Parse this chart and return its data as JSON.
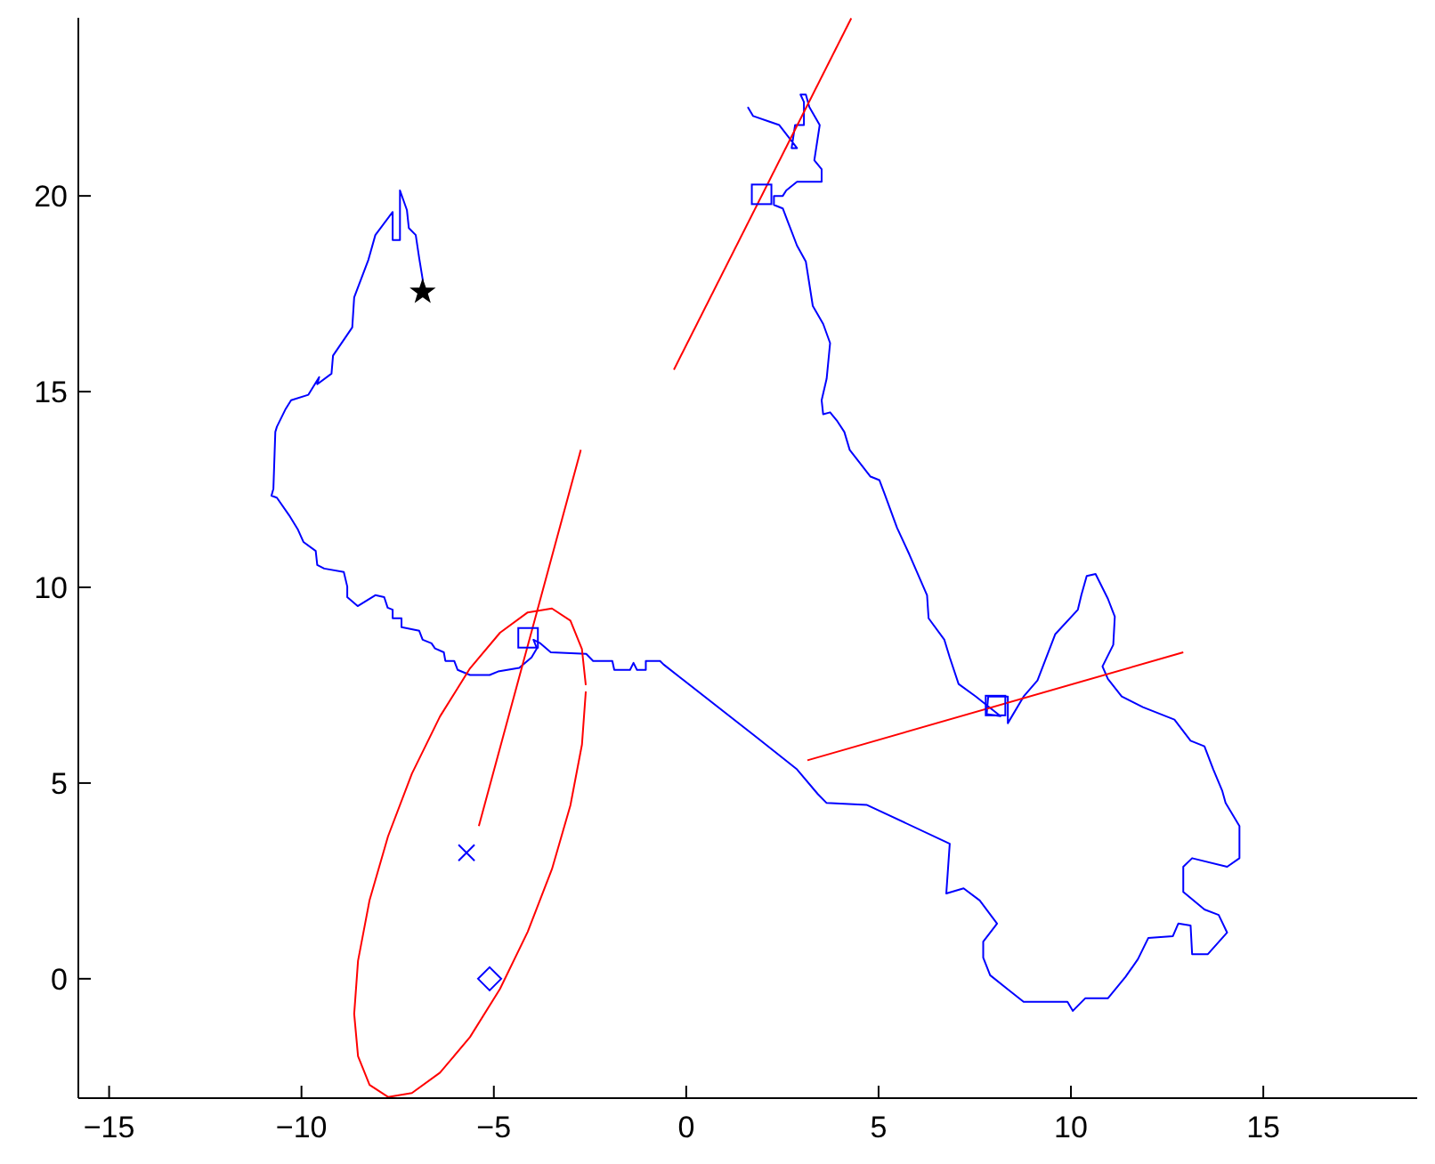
{
  "chart_data": {
    "type": "line",
    "xlim": [
      -15.8,
      19
    ],
    "ylim": [
      -3.05,
      24.55
    ],
    "xticks": [
      -15,
      -10,
      -5,
      0,
      5,
      10,
      15
    ],
    "yticks": [
      0,
      5,
      10,
      15,
      20
    ],
    "grid": false,
    "series": [
      {
        "type": "line",
        "color": "#0000ff",
        "x": [
          -6.85,
          -6.85,
          -6.94,
          -7.03,
          -7.21,
          -7.26,
          -7.44,
          -7.44,
          -7.63,
          -7.63,
          -8.08,
          -8.26,
          -8.63,
          -8.68,
          -9.18,
          -9.22,
          -9.59,
          -9.54,
          -9.82,
          -10.27,
          -10.41,
          -10.64,
          -10.68,
          -10.73,
          -10.78,
          -10.64,
          -10.32,
          -10.09,
          -9.95,
          -9.63,
          -9.59,
          -9.41,
          -8.9,
          -8.81,
          -8.81,
          -8.54,
          -8.08,
          -7.85,
          -7.76,
          -7.63,
          -7.63,
          -7.4,
          -7.4,
          -6.94,
          -6.85,
          -6.62,
          -6.53,
          -6.3,
          -6.26,
          -6.03,
          -5.94,
          -5.62,
          -5.11,
          -4.89,
          -4.34,
          -4.02,
          -3.88,
          -3.97,
          -3.79,
          -3.52,
          -2.6,
          -2.42,
          -1.92,
          -1.87,
          -1.46,
          -1.37,
          -1.28,
          -1.05,
          -1.05,
          -0.68,
          -0.59,
          1.83,
          2.88,
          3.42,
          3.65,
          4.7,
          6.85,
          6.76,
          7.21,
          7.63,
          8.08,
          7.72,
          7.72,
          7.9,
          8.36,
          8.77,
          9.91,
          10.05,
          10.37,
          10.96,
          11.42,
          11.74,
          12.01,
          12.65,
          12.79,
          13.11,
          13.15,
          13.56,
          14.06,
          13.84,
          13.47,
          12.92,
          12.92,
          13.15,
          14.06,
          14.38,
          14.38,
          14.02,
          13.93,
          13.7,
          13.47,
          13.11,
          12.69,
          11.87,
          11.32,
          10.96,
          10.82,
          11.1,
          11.14,
          10.96,
          10.64,
          10.41,
          10.27,
          10.18,
          9.59,
          9.13,
          8.77,
          8.36,
          8.36,
          7.85,
          7.81,
          8.17,
          7.53,
          7.08,
          6.85,
          6.71,
          6.3,
          6.26,
          5.8,
          5.48,
          5.16,
          5.02,
          4.79,
          4.25,
          4.11,
          3.93,
          3.74,
          3.56,
          3.52,
          3.65,
          3.74,
          3.56,
          3.29,
          3.11,
          2.88,
          2.65,
          2.51,
          2.28,
          2.28,
          2.51,
          2.6,
          2.88,
          3.52,
          3.52,
          3.33,
          3.47,
          3.2,
          3.11,
          2.97,
          3.06,
          3.06,
          2.83,
          2.74,
          2.88,
          2.42,
          2.15,
          1.74,
          1.6
        ],
        "values": [
          17.55,
          17.87,
          18.41,
          19,
          19.18,
          19.64,
          20.14,
          18.87,
          18.87,
          19.59,
          19,
          18.37,
          17.41,
          16.64,
          15.92,
          15.46,
          15.19,
          15.37,
          14.92,
          14.78,
          14.56,
          14.1,
          13.97,
          12.52,
          12.34,
          12.29,
          11.84,
          11.47,
          11.16,
          10.93,
          10.57,
          10.48,
          10.39,
          10.02,
          9.75,
          9.52,
          9.8,
          9.75,
          9.48,
          9.43,
          9.21,
          9.21,
          8.98,
          8.89,
          8.66,
          8.57,
          8.44,
          8.34,
          8.12,
          8.12,
          7.89,
          7.76,
          7.76,
          7.85,
          7.94,
          8.21,
          8.44,
          8.66,
          8.57,
          8.34,
          8.3,
          8.12,
          8.12,
          7.89,
          7.89,
          8.07,
          7.89,
          7.89,
          8.12,
          8.12,
          8.03,
          6.17,
          5.35,
          4.72,
          4.49,
          4.44,
          3.45,
          2.18,
          2.31,
          2,
          1.41,
          0.95,
          0.54,
          0.09,
          -0.27,
          -0.59,
          -0.59,
          -0.82,
          -0.5,
          -0.5,
          0.05,
          0.5,
          1.04,
          1.09,
          1.41,
          1.36,
          0.63,
          0.63,
          1.18,
          1.63,
          1.77,
          2.22,
          2.86,
          3.08,
          2.86,
          3.08,
          3.9,
          4.49,
          4.81,
          5.35,
          5.94,
          6.08,
          6.62,
          6.94,
          7.21,
          7.66,
          7.98,
          8.53,
          9.25,
          9.71,
          10.34,
          10.29,
          9.8,
          9.43,
          8.8,
          7.62,
          7.21,
          6.53,
          7.21,
          7.21,
          6.76,
          6.71,
          7.21,
          7.53,
          8.21,
          8.66,
          9.21,
          9.8,
          10.84,
          11.52,
          12.38,
          12.74,
          12.83,
          13.51,
          13.97,
          14.24,
          14.47,
          14.42,
          14.78,
          15.33,
          16.24,
          16.73,
          17.19,
          18.32,
          18.73,
          19.32,
          19.68,
          19.77,
          20,
          20,
          20.14,
          20.36,
          20.36,
          20.68,
          20.91,
          21.81,
          22.27,
          22.59,
          22.59,
          22.4,
          21.81,
          21.81,
          21.22,
          21.22,
          21.81,
          21.9,
          22.04,
          22.27
        ]
      },
      {
        "type": "line",
        "color": "#ff0000",
        "x": [
          -0.32,
          4.29
        ],
        "values": [
          15.56,
          24.54
        ]
      },
      {
        "type": "line",
        "color": "#ff0000",
        "x": [
          -5.39,
          -2.74
        ],
        "values": [
          3.9,
          13.51
        ]
      },
      {
        "type": "line",
        "color": "#ff0000",
        "x": [
          3.15,
          12.92
        ],
        "values": [
          5.58,
          8.34
        ]
      },
      {
        "type": "line",
        "color": "#ff0000",
        "x": [
          -2.61,
          -2.71,
          -3.01,
          -3.49,
          -4.12,
          -4.84,
          -5.62,
          -6.4,
          -7.13,
          -7.75,
          -8.23,
          -8.53,
          -8.63,
          -8.53,
          -8.23,
          -7.75,
          -7.13,
          -6.4,
          -5.62,
          -4.84,
          -4.12,
          -3.49,
          -3.01,
          -2.71,
          -2.61
        ],
        "values": [
          7.34,
          5.98,
          4.43,
          2.8,
          1.2,
          -0.26,
          -1.49,
          -2.4,
          -2.92,
          -3.02,
          -2.71,
          -1.98,
          -0.9,
          0.46,
          2.01,
          3.64,
          5.24,
          6.7,
          7.93,
          8.84,
          9.36,
          9.46,
          9.15,
          8.42,
          7.5
        ]
      },
      {
        "type": "scatter",
        "color": "#0000ff",
        "marker": "square",
        "x": [
          -4.11,
          1.96,
          8.04
        ],
        "values": [
          8.71,
          20.04,
          6.98
        ]
      },
      {
        "type": "scatter",
        "color": "#0000ff",
        "marker": "cross",
        "x": [
          -5.71
        ],
        "values": [
          3.22
        ]
      },
      {
        "type": "scatter",
        "color": "#0000ff",
        "marker": "diamond",
        "x": [
          -5.11
        ],
        "values": [
          0
        ]
      },
      {
        "type": "scatter",
        "color": "#000000",
        "marker": "star",
        "x": [
          -6.85
        ],
        "values": [
          17.55
        ]
      }
    ]
  }
}
